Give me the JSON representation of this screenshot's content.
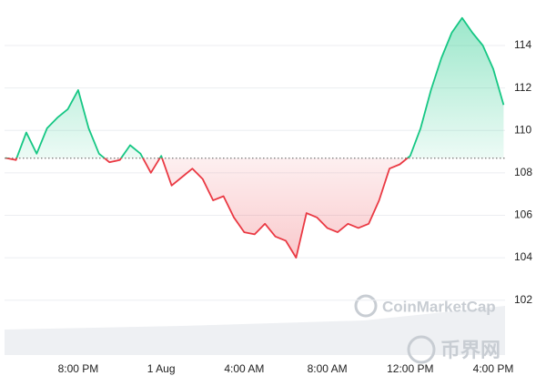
{
  "chart_data": {
    "type": "line",
    "x": [
      16.5,
      17,
      17.5,
      18,
      18.5,
      19,
      19.5,
      20,
      20.5,
      21,
      21.5,
      22,
      22.5,
      23,
      23.5,
      24,
      24.5,
      25,
      25.5,
      26,
      26.5,
      27,
      27.5,
      28,
      28.5,
      29,
      29.5,
      30,
      30.5,
      31,
      31.5,
      32,
      32.5,
      33,
      33.5,
      34,
      34.5,
      35,
      35.5,
      36,
      36.5,
      37,
      37.5,
      38,
      38.5,
      39,
      39.5,
      40,
      40.5
    ],
    "series": [
      {
        "color": "#16c784",
        "values": [
          108.7,
          108.6,
          109.9,
          108.9,
          110.1,
          110.6,
          111.0,
          111.9,
          110.1,
          108.9,
          108.5,
          108.6,
          109.3,
          108.9,
          108.0,
          108.8,
          107.4,
          107.8,
          108.2,
          107.7,
          106.7,
          106.9,
          105.9,
          105.2,
          105.1,
          105.6,
          105.0,
          104.8,
          104.0,
          106.1,
          105.9,
          105.4,
          105.2,
          105.6,
          105.4,
          105.6,
          106.7,
          108.2,
          108.4,
          108.8,
          110.1,
          111.9,
          113.4,
          114.6,
          115.3,
          114.6,
          114.0,
          112.9,
          111.2
        ]
      }
    ],
    "below_color": "#ea3943",
    "baseline": 108.69,
    "xlim": [
      16.45,
      40.57
    ],
    "xticks": [
      {
        "value": 20,
        "label": "8:00 PM"
      },
      {
        "value": 24,
        "label": "1 Aug"
      },
      {
        "value": 28,
        "label": "4:00 AM"
      },
      {
        "value": 32,
        "label": "8:00 AM"
      },
      {
        "value": 36,
        "label": "12:00 PM"
      },
      {
        "value": 40,
        "label": "4:00 PM"
      }
    ],
    "ylim": [
      100.7,
      115.8
    ],
    "yticks": [
      102,
      104,
      106,
      108,
      110,
      112,
      114
    ],
    "grid": true,
    "watermarks": [
      "CoinMarketCap",
      "币界网"
    ]
  }
}
